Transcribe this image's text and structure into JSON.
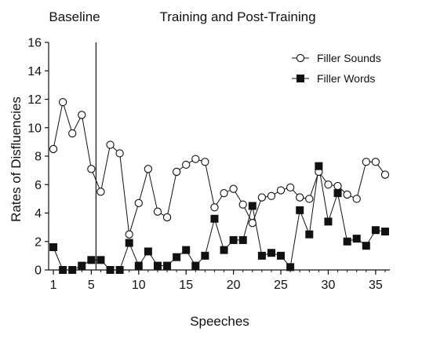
{
  "chart_data": {
    "type": "line",
    "title": "",
    "xlabel": "Speeches",
    "ylabel": "Rates of Disfluencies",
    "xlim": [
      0.5,
      36.5
    ],
    "ylim": [
      0,
      16
    ],
    "x_ticks": [
      "1",
      "5",
      "10",
      "15",
      "20",
      "25",
      "30",
      "35"
    ],
    "y_ticks": [
      "0",
      "2",
      "4",
      "6",
      "8",
      "10",
      "12",
      "14",
      "16"
    ],
    "phase_labels": [
      "Baseline",
      "Training and Post-Training"
    ],
    "phase_change_after": 5.5,
    "legend_position": "top-right",
    "x": [
      1,
      2,
      3,
      4,
      5,
      6,
      7,
      8,
      9,
      10,
      11,
      12,
      13,
      14,
      15,
      16,
      17,
      18,
      19,
      20,
      21,
      22,
      23,
      24,
      25,
      26,
      27,
      28,
      29,
      30,
      31,
      32,
      33,
      34,
      35,
      36
    ],
    "series": [
      {
        "name": "Filler Sounds",
        "marker": "open-circle",
        "color": "#111111",
        "values": [
          8.5,
          11.8,
          9.6,
          10.9,
          7.1,
          5.5,
          8.8,
          8.2,
          2.5,
          4.7,
          7.1,
          4.1,
          3.7,
          6.9,
          7.4,
          7.8,
          7.6,
          4.4,
          5.4,
          5.7,
          4.6,
          3.3,
          5.1,
          5.2,
          5.6,
          5.8,
          5.1,
          5.0,
          6.9,
          6.0,
          5.9,
          5.3,
          5.0,
          7.6,
          7.6,
          6.7
        ]
      },
      {
        "name": "Filler Words",
        "marker": "filled-square",
        "color": "#111111",
        "values": [
          1.6,
          0.0,
          0.0,
          0.3,
          0.7,
          0.7,
          0.0,
          0.0,
          1.9,
          0.3,
          1.3,
          0.3,
          0.3,
          0.9,
          1.4,
          0.3,
          1.0,
          3.6,
          1.4,
          2.1,
          2.1,
          4.5,
          1.0,
          1.2,
          1.0,
          0.2,
          4.2,
          2.5,
          7.3,
          3.4,
          5.4,
          2.0,
          2.2,
          1.7,
          2.8,
          2.7
        ]
      }
    ]
  }
}
